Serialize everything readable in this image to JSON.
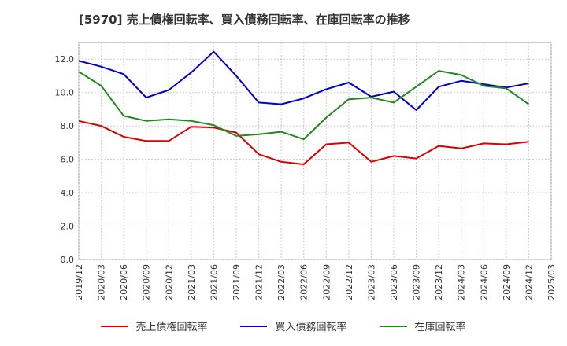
{
  "chart_data": {
    "type": "line",
    "title": "[5970]  売上債権回転率、買入債務回転率、在庫回転率の推移",
    "xlabel": "",
    "ylabel": "",
    "ylim": [
      0,
      13
    ],
    "yticks": [
      "0.0",
      "2.0",
      "4.0",
      "6.0",
      "8.0",
      "10.0",
      "12.0"
    ],
    "ytick_values": [
      0,
      2,
      4,
      6,
      8,
      10,
      12
    ],
    "categories": [
      "2019/12",
      "2020/03",
      "2020/06",
      "2020/09",
      "2020/12",
      "2021/03",
      "2021/06",
      "2021/09",
      "2021/12",
      "2022/03",
      "2022/06",
      "2022/09",
      "2022/12",
      "2023/03",
      "2023/06",
      "2023/09",
      "2023/12",
      "2024/03",
      "2024/06",
      "2024/09",
      "2024/12",
      "2025/03"
    ],
    "grid": true,
    "legend_position": "bottom",
    "series": [
      {
        "name": "売上債権回転率",
        "color": "#dd0000",
        "values": [
          8.3,
          8.0,
          7.35,
          7.1,
          7.1,
          7.95,
          7.9,
          7.6,
          6.3,
          5.85,
          5.7,
          6.9,
          7.0,
          5.85,
          6.2,
          6.05,
          6.8,
          6.65,
          6.95,
          6.9,
          7.05,
          null
        ]
      },
      {
        "name": "買入債務回転率",
        "color": "#0000cc",
        "values": [
          11.9,
          11.55,
          11.1,
          9.7,
          10.15,
          11.2,
          12.45,
          11.0,
          9.4,
          9.3,
          9.65,
          10.2,
          10.6,
          9.75,
          10.05,
          8.95,
          10.35,
          10.7,
          10.5,
          10.3,
          10.55,
          null
        ]
      },
      {
        "name": "在庫回転率",
        "color": "#228822",
        "values": [
          11.25,
          10.4,
          8.6,
          8.3,
          8.4,
          8.3,
          8.05,
          7.4,
          7.5,
          7.65,
          7.2,
          8.5,
          9.6,
          9.7,
          9.4,
          10.35,
          11.3,
          11.05,
          10.4,
          10.25,
          9.3,
          null
        ]
      }
    ]
  }
}
